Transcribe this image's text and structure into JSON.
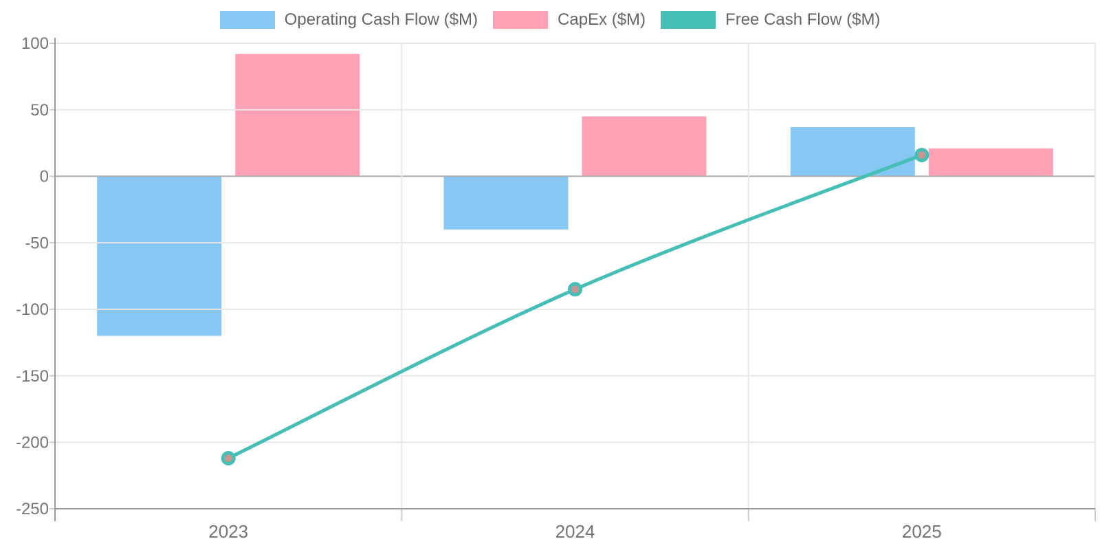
{
  "chart_data": {
    "type": "bar",
    "note": "combo chart: grouped bars + line overlay",
    "categories": [
      "2023",
      "2024",
      "2025"
    ],
    "series": [
      {
        "name": "Operating Cash Flow ($M)",
        "kind": "bar",
        "color": "#86C7F3",
        "values": [
          -120,
          -40,
          37
        ]
      },
      {
        "name": "CapEx ($M)",
        "kind": "bar",
        "color": "#FFA1B5",
        "values": [
          92,
          45,
          21
        ]
      },
      {
        "name": "Free Cash Flow ($M)",
        "kind": "line",
        "color": "#45BEB6",
        "marker_fill": "#C79792",
        "values": [
          -212,
          -85,
          16
        ]
      }
    ],
    "xlabel": "",
    "ylabel": "",
    "ylim": [
      -250,
      100
    ],
    "yticks": [
      100,
      50,
      0,
      -50,
      -100,
      -150,
      -200,
      -250
    ],
    "grid": true,
    "legend_position": "top",
    "colors": {
      "grid_line": "#E8E8E8",
      "zero_line": "#ACACAC",
      "axis_line": "#999999",
      "tick_mark": "#CCCCCC",
      "tick_label": "#757575",
      "legend_text": "#666666",
      "background": "#FFFFFF"
    }
  }
}
